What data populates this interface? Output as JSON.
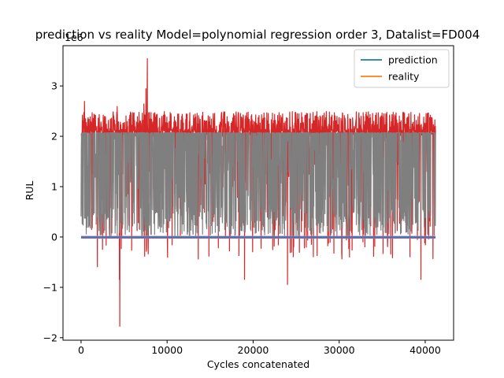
{
  "chart_data": {
    "type": "line",
    "title": "prediction vs reality Model=polynomial regression order 3, Datalist=FD004",
    "xlabel": "Cycles concatenated",
    "ylabel": "RUL",
    "y_offset_label": "1e6",
    "xlim": [
      -2100,
      43300
    ],
    "ylim": [
      -2.05,
      3.8
    ],
    "x_ticks": [
      0,
      10000,
      20000,
      30000,
      40000
    ],
    "x_tick_labels": [
      "0",
      "10000",
      "20000",
      "30000",
      "40000"
    ],
    "y_ticks": [
      -2,
      -1,
      0,
      1,
      2,
      3
    ],
    "y_tick_labels": [
      "−2",
      "−1",
      "0",
      "1",
      "2",
      "3"
    ],
    "grid": false,
    "legend_position": "top-right",
    "legend": [
      {
        "name": "prediction",
        "color": "#1f77b4"
      },
      {
        "name": "reality",
        "color": "#ff7f0e"
      }
    ],
    "x_range": [
      0,
      41200
    ],
    "series": [
      {
        "name": "prediction",
        "color": "#1f77b4",
        "values_approx": {
          "x": [
            0,
            41200
          ],
          "y": [
            0.0,
            0.0
          ]
        }
      },
      {
        "name": "reality",
        "color": "#ff7f0e",
        "values_approx": {
          "x": [
            0,
            41200
          ],
          "y": [
            0.0,
            0.0
          ]
        }
      },
      {
        "color": "#9467bd",
        "values_approx": {
          "x": [
            0,
            41200
          ],
          "y": [
            -0.02,
            -0.02
          ]
        }
      },
      {
        "color": "#e377c2",
        "values_approx": {
          "x": [
            0,
            41200
          ],
          "y": [
            0.01,
            0.01
          ]
        }
      },
      {
        "color": "#d62728",
        "range_approx": {
          "baseline": 2.07,
          "max": 3.55,
          "max_at_x": 7700,
          "min": -1.78,
          "min_at_x": 4500,
          "upper_band": [
            2.1,
            2.5
          ]
        }
      },
      {
        "color": "#7f7f7f",
        "range_approx": {
          "upper": 2.07,
          "lower": 0.0
        }
      }
    ]
  }
}
